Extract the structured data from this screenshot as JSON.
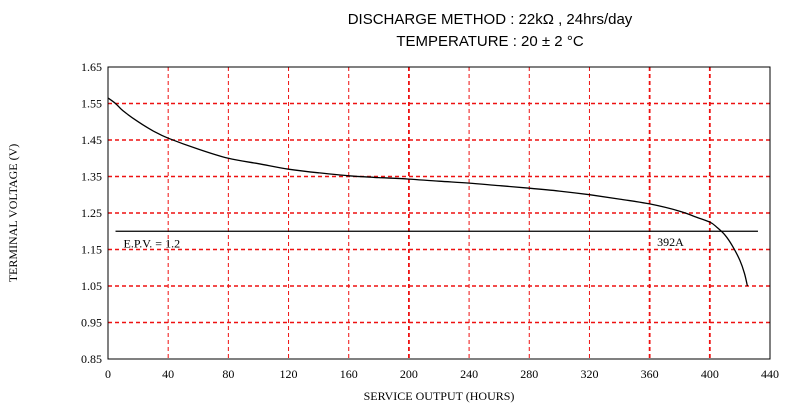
{
  "chart_data": {
    "type": "line",
    "title_line1": "DISCHARGE METHOD : 22kΩ , 24hrs/day",
    "title_line2": "TEMPERATURE : 20 ± 2 °C",
    "xlabel": "SERVICE OUTPUT (HOURS)",
    "ylabel": "TERMINAL VOLTAGE (V)",
    "xlim": [
      0,
      440
    ],
    "ylim": [
      0.85,
      1.65
    ],
    "xticks": [
      "0",
      "40",
      "80",
      "120",
      "160",
      "200",
      "240",
      "280",
      "320",
      "360",
      "400",
      "440"
    ],
    "yticks": [
      "0.85",
      "0.95",
      "1.05",
      "1.15",
      "1.25",
      "1.35",
      "1.45",
      "1.55",
      "1.65"
    ],
    "grid": true,
    "grid_color": "#ee1111",
    "line_color": "#000000",
    "series": [
      {
        "name": "392A",
        "x": [
          0,
          5,
          10,
          20,
          30,
          40,
          60,
          80,
          100,
          120,
          140,
          160,
          180,
          200,
          220,
          240,
          260,
          280,
          300,
          320,
          340,
          360,
          380,
          390,
          400,
          405,
          410,
          415,
          420,
          423,
          425
        ],
        "y": [
          1.565,
          1.55,
          1.53,
          1.5,
          1.475,
          1.455,
          1.425,
          1.4,
          1.385,
          1.37,
          1.36,
          1.352,
          1.347,
          1.343,
          1.337,
          1.332,
          1.325,
          1.318,
          1.31,
          1.3,
          1.288,
          1.275,
          1.255,
          1.24,
          1.225,
          1.21,
          1.19,
          1.16,
          1.12,
          1.085,
          1.05
        ]
      }
    ],
    "epv": {
      "value": 1.2,
      "x_start": 5,
      "x_end": 432,
      "label": "E.P.V. = 1.2"
    },
    "annotation": {
      "text": "392A",
      "x": 365,
      "y": 1.17
    }
  }
}
